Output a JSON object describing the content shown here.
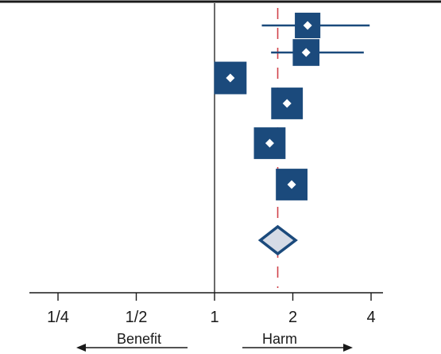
{
  "chart_data": {
    "type": "scatter",
    "subtype": "forest-plot",
    "x_scale": "log2",
    "xlim": [
      0.2,
      4.6
    ],
    "x_ticks": [
      0.25,
      0.5,
      1,
      2,
      4
    ],
    "x_tick_labels": [
      "1/4",
      "1/2",
      "1",
      "2",
      "4"
    ],
    "reference_line": 1,
    "pooled_line": 1.75,
    "left_arrow_label": "Benefit",
    "right_arrow_label": "Harm",
    "studies": [
      {
        "estimate": 2.28,
        "ci_low": 1.52,
        "ci_high": 3.95,
        "weight": 0.55
      },
      {
        "estimate": 2.25,
        "ci_low": 1.65,
        "ci_high": 3.75,
        "weight": 0.62
      },
      {
        "estimate": 1.15,
        "ci_low": 1.15,
        "ci_high": 1.15,
        "weight": 0.95
      },
      {
        "estimate": 1.9,
        "ci_low": 1.9,
        "ci_high": 1.9,
        "weight": 0.9
      },
      {
        "estimate": 1.63,
        "ci_low": 1.63,
        "ci_high": 1.63,
        "weight": 0.9
      },
      {
        "estimate": 1.98,
        "ci_low": 1.98,
        "ci_high": 1.98,
        "weight": 0.9
      }
    ],
    "pooled": {
      "estimate": 1.75,
      "ci_low": 1.5,
      "ci_high": 2.05
    },
    "colors": {
      "marker": "#1b4a7c",
      "pooled_fill": "#d5dbe6",
      "pooled_line": "#d0434b",
      "axis": "#1a1a1a"
    }
  }
}
